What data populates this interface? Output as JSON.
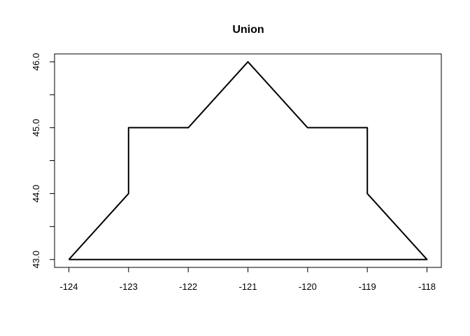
{
  "chart_data": {
    "type": "line",
    "title": "Union",
    "xlabel": "",
    "ylabel": "",
    "xlim": [
      -124.24,
      -117.76
    ],
    "ylim": [
      42.88,
      46.12
    ],
    "x_ticks": [
      -124,
      -123,
      -122,
      -121,
      -120,
      -119,
      -118
    ],
    "x_tick_labels": [
      "-124",
      "-123",
      "-122",
      "-121",
      "-120",
      "-119",
      "-118"
    ],
    "y_ticks": [
      43.0,
      43.5,
      44.0,
      44.5,
      45.0,
      45.5,
      46.0
    ],
    "y_tick_labels": [
      "43.0",
      "",
      "44.0",
      "",
      "45.0",
      "",
      "46.0"
    ],
    "grid": false,
    "series": [
      {
        "color": "#000000",
        "x": [
          -124,
          -123,
          -123,
          -122,
          -121,
          -120,
          -119,
          -119,
          -118,
          -124
        ],
        "y": [
          43,
          44,
          45,
          45,
          46,
          45,
          45,
          44,
          43,
          43
        ]
      }
    ]
  }
}
